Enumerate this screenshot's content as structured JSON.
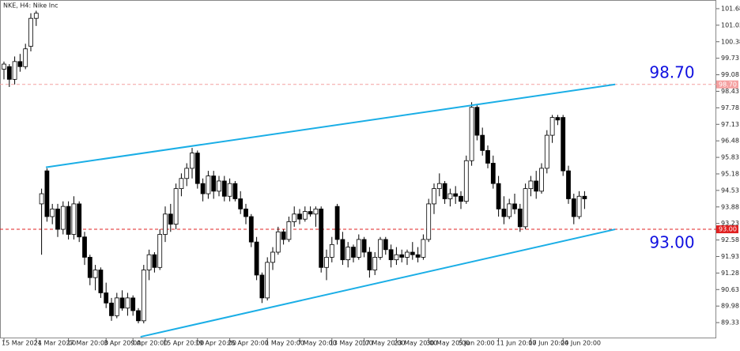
{
  "chart_data": {
    "type": "candlestick",
    "title": "NKE, H4: Nike Inc",
    "categories": [
      "15 Mar 2024",
      null,
      null,
      null,
      null,
      null,
      "21 Mar 20:00",
      null,
      null,
      null,
      null,
      null,
      "27 Mar 20:00",
      null,
      null,
      null,
      null,
      null,
      null,
      "3 Apr 20:00",
      null,
      null,
      null,
      null,
      "9 Apr 20:00",
      null,
      null,
      null,
      null,
      null,
      "15 Apr 20:00",
      null,
      null,
      null,
      null,
      null,
      "19 Apr 20:00",
      null,
      null,
      null,
      null,
      null,
      "25 Apr 20:00",
      null,
      null,
      null,
      null,
      null,
      null,
      "1 May 20:00",
      null,
      null,
      null,
      null,
      null,
      "7 May 20:00",
      null,
      null,
      null,
      null,
      null,
      "13 May 20:00",
      null,
      null,
      null,
      null,
      null,
      "17 May 20:00",
      null,
      null,
      null,
      null,
      null,
      "23 May 20:00",
      null,
      null,
      null,
      null,
      null,
      "30 May 20:00",
      null,
      null,
      null,
      null,
      null,
      "5 Jun 20:00",
      null,
      null,
      null,
      null,
      null,
      null,
      "11 Jun 20:00",
      null,
      null,
      null,
      null,
      null,
      "17 Jun 20:00",
      null,
      null,
      null,
      null,
      null,
      "24 Jun 20:00",
      null,
      null,
      null,
      null
    ],
    "open": [
      99.3,
      99.4,
      98.9,
      99.6,
      99.4,
      100.2,
      101.3,
      94.0,
      95.3,
      93.5,
      93.8,
      93.0,
      93.9,
      92.8,
      94.0,
      92.7,
      91.9,
      91.1,
      91.4,
      90.5,
      90.1,
      89.6,
      90.3,
      89.9,
      90.3,
      89.8,
      89.4,
      91.4,
      92.0,
      91.5,
      92.8,
      93.6,
      93.2,
      94.6,
      95.0,
      95.4,
      96.0,
      94.8,
      94.4,
      95.1,
      94.5,
      94.9,
      94.3,
      94.8,
      94.2,
      93.8,
      93.5,
      92.5,
      91.2,
      90.3,
      91.7,
      92.1,
      92.9,
      92.6,
      93.3,
      93.6,
      93.4,
      93.7,
      93.6,
      93.8,
      91.5,
      91.9,
      93.9,
      92.6,
      91.8,
      92.3,
      91.9,
      92.6,
      92.1,
      91.4,
      91.9,
      92.6,
      92.2,
      91.8,
      92.0,
      91.9,
      92.1,
      92.0,
      91.9,
      92.6,
      94.0,
      94.6,
      94.8,
      94.2,
      94.4,
      94.3,
      94.1,
      95.7,
      97.8,
      96.7,
      96.1,
      95.6,
      94.8,
      93.8,
      93.5,
      94.0,
      93.8,
      93.1,
      94.6,
      94.9,
      94.5,
      95.4,
      96.7,
      97.4,
      97.4,
      95.3,
      94.2,
      93.5,
      94.3
    ],
    "high": [
      99.6,
      99.5,
      99.8,
      99.9,
      100.3,
      101.5,
      101.6,
      94.6,
      95.4,
      94.0,
      94.0,
      94.1,
      94.1,
      94.3,
      94.1,
      92.9,
      92.0,
      91.6,
      91.5,
      90.9,
      90.3,
      90.5,
      90.6,
      90.5,
      90.4,
      89.9,
      91.6,
      92.2,
      92.1,
      93.0,
      93.9,
      94.0,
      94.8,
      95.2,
      95.6,
      96.2,
      96.1,
      95.0,
      95.3,
      95.3,
      95.1,
      95.1,
      95.0,
      94.9,
      94.5,
      94.0,
      93.6,
      92.7,
      91.3,
      91.9,
      92.3,
      93.1,
      93.0,
      93.5,
      93.9,
      93.8,
      93.9,
      93.9,
      93.9,
      93.9,
      92.2,
      92.7,
      94.0,
      92.9,
      92.5,
      92.4,
      92.8,
      92.7,
      92.3,
      92.1,
      92.7,
      92.7,
      92.4,
      92.3,
      92.2,
      92.2,
      92.5,
      92.3,
      92.8,
      94.2,
      94.8,
      95.2,
      94.9,
      94.6,
      94.7,
      94.5,
      95.9,
      98.0,
      97.9,
      97.0,
      96.3,
      95.9,
      95.1,
      94.3,
      94.2,
      94.4,
      94.0,
      94.8,
      95.1,
      95.3,
      95.6,
      96.9,
      97.5,
      97.5,
      97.5,
      95.5,
      94.4,
      94.5,
      94.5
    ],
    "low": [
      98.9,
      98.6,
      98.7,
      99.2,
      99.3,
      100.0,
      101.0,
      92.0,
      93.3,
      93.2,
      92.7,
      92.8,
      92.6,
      92.6,
      92.5,
      91.6,
      90.8,
      90.6,
      90.3,
      89.9,
      89.4,
      89.5,
      89.8,
      89.6,
      89.6,
      89.3,
      89.3,
      91.0,
      91.3,
      91.4,
      92.5,
      92.9,
      93.0,
      94.3,
      94.7,
      95.0,
      94.6,
      94.1,
      94.2,
      94.2,
      94.3,
      94.1,
      94.1,
      94.1,
      93.6,
      93.2,
      92.3,
      91.0,
      90.1,
      90.2,
      91.4,
      92.0,
      92.4,
      92.5,
      93.1,
      93.2,
      93.3,
      93.5,
      93.1,
      91.3,
      91.0,
      91.7,
      92.4,
      91.6,
      91.5,
      91.7,
      91.8,
      91.9,
      91.1,
      91.2,
      91.8,
      92.0,
      91.5,
      91.6,
      91.7,
      91.6,
      91.8,
      91.7,
      91.8,
      92.5,
      93.6,
      94.3,
      94.0,
      93.9,
      94.0,
      93.8,
      94.0,
      95.5,
      96.5,
      95.9,
      95.4,
      94.6,
      93.5,
      93.2,
      93.4,
      93.6,
      92.9,
      93.0,
      94.3,
      94.2,
      94.4,
      95.2,
      96.4,
      97.1,
      95.1,
      94.0,
      93.2,
      93.4,
      93.8
    ],
    "close": [
      99.5,
      98.9,
      99.6,
      99.4,
      100.1,
      101.3,
      101.5,
      94.4,
      93.5,
      93.8,
      93.0,
      93.9,
      92.8,
      94.0,
      92.7,
      91.9,
      91.1,
      91.4,
      90.5,
      90.1,
      89.6,
      90.3,
      89.9,
      90.3,
      89.8,
      89.4,
      91.4,
      92.0,
      91.5,
      92.8,
      93.6,
      93.2,
      94.6,
      95.0,
      95.4,
      96.0,
      94.8,
      94.4,
      95.1,
      94.5,
      94.9,
      94.3,
      94.8,
      94.2,
      93.8,
      93.5,
      92.5,
      91.2,
      90.3,
      91.7,
      92.1,
      92.9,
      92.6,
      93.3,
      93.6,
      93.4,
      93.7,
      93.6,
      93.8,
      91.5,
      91.9,
      92.4,
      92.6,
      91.8,
      92.3,
      91.9,
      92.6,
      92.1,
      91.4,
      91.9,
      92.6,
      92.2,
      91.8,
      92.0,
      91.9,
      92.1,
      92.0,
      91.9,
      92.6,
      94.0,
      94.6,
      94.8,
      94.2,
      94.4,
      94.3,
      94.1,
      95.7,
      97.8,
      96.7,
      96.1,
      95.6,
      94.8,
      93.8,
      93.5,
      94.0,
      93.8,
      93.1,
      94.6,
      94.9,
      94.5,
      95.4,
      96.7,
      97.4,
      97.3,
      95.3,
      94.2,
      93.5,
      94.3,
      94.2
    ],
    "ylim": [
      88.71,
      101.99
    ],
    "yticks": [
      101.68,
      101.03,
      100.38,
      99.73,
      99.08,
      98.43,
      97.78,
      97.13,
      96.48,
      95.83,
      95.18,
      94.53,
      93.88,
      93.23,
      92.58,
      91.93,
      91.28,
      90.63,
      89.98,
      89.33
    ],
    "levels": [
      {
        "value": 98.7,
        "label": "98.70",
        "color": "#f4a0a0"
      },
      {
        "value": 93.0,
        "label": "93.00",
        "color": "#e02020"
      }
    ],
    "trendlines": [
      {
        "x": [
          7.8,
          113.7
        ],
        "y": [
          95.44,
          98.7
        ]
      },
      {
        "x": [
          25.4,
          113.7
        ],
        "y": [
          88.77,
          93.0
        ]
      }
    ],
    "trend_color": "#1aaee6",
    "annotation_color": "#1010e0",
    "bull_color": "#ffffff",
    "bear_color": "#000000"
  }
}
